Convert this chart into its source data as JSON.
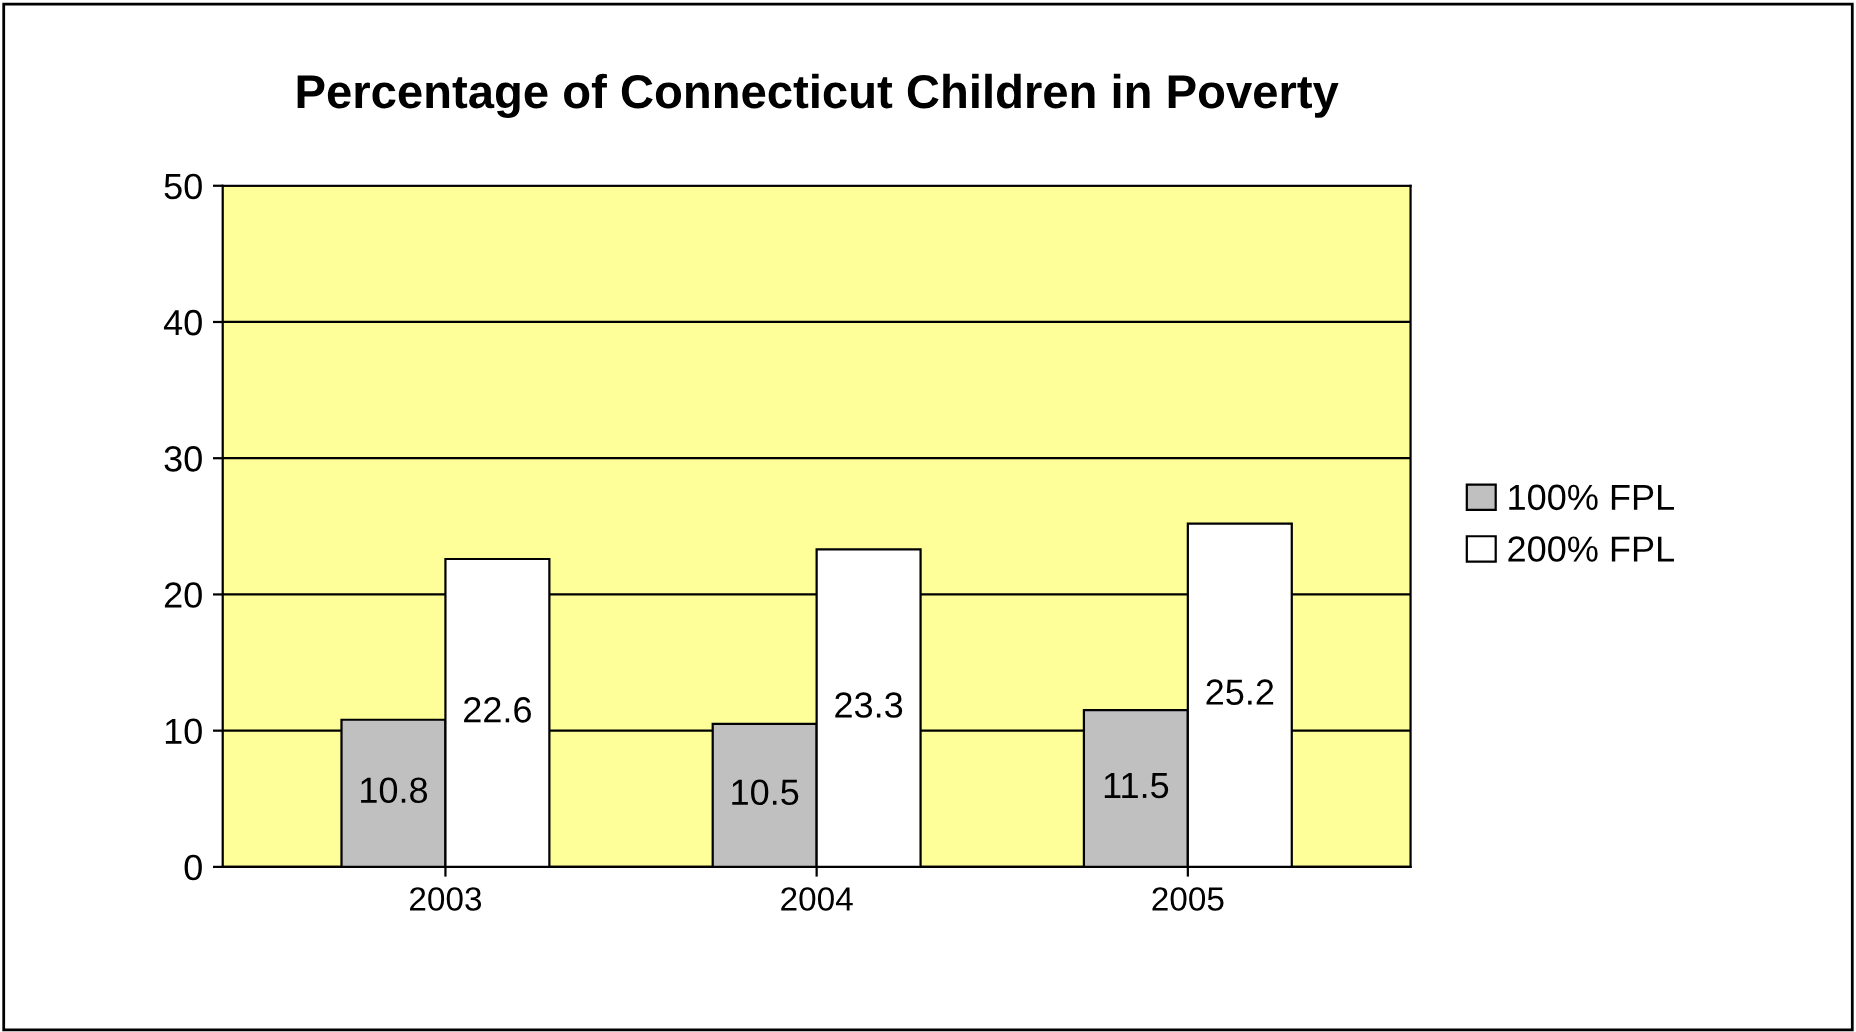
{
  "chart_data": {
    "type": "bar",
    "title": "Percentage of Connecticut Children in Poverty",
    "categories": [
      "2003",
      "2004",
      "2005"
    ],
    "series": [
      {
        "name": "100% FPL",
        "color": "#c0c0c0",
        "values": [
          10.8,
          10.5,
          11.5
        ]
      },
      {
        "name": "200% FPL",
        "color": "#ffffff",
        "values": [
          22.6,
          23.3,
          25.2
        ]
      }
    ],
    "ylim": [
      0,
      50
    ],
    "yticks": [
      0,
      10,
      20,
      30,
      40,
      50
    ],
    "grid": "y",
    "legend": "right",
    "data_labels": true
  }
}
